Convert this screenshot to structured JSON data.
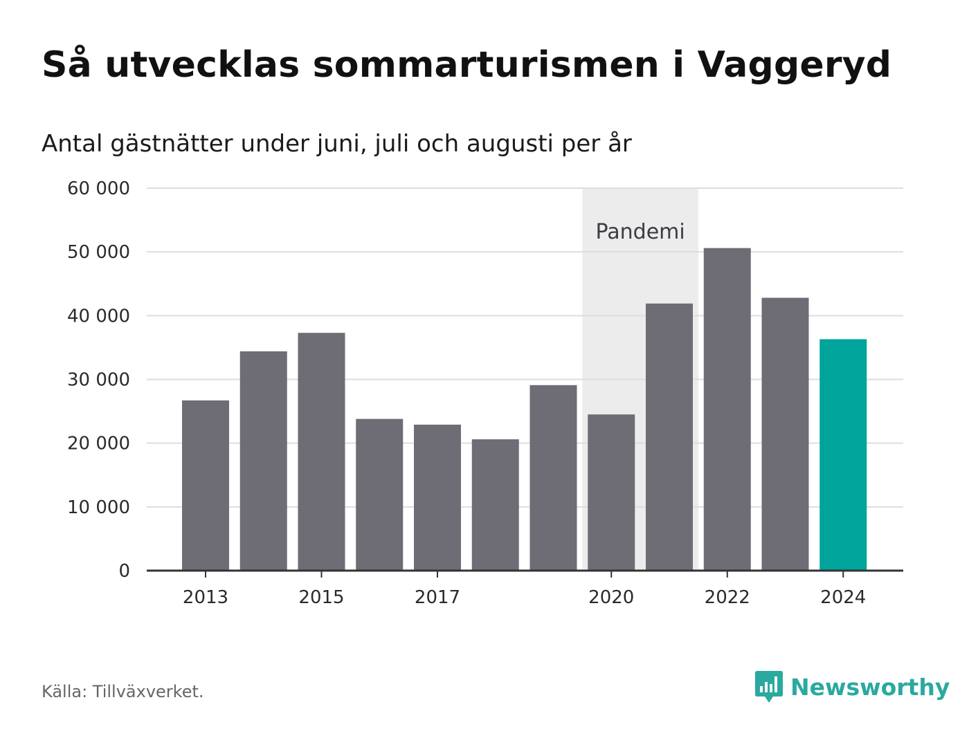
{
  "header": {
    "title": "Så utvecklas sommarturismen i Vaggeryd",
    "subtitle": "Antal gästnätter under juni, juli och augusti per år"
  },
  "footer": {
    "source": "Källa: Tillväxverket.",
    "brand": "Newsworthy",
    "brand_color": "#2aa9a0"
  },
  "colors": {
    "bar": "#6e6d75",
    "highlight": "#00a49a",
    "shade": "#ececec",
    "grid": "#dddddd",
    "axis": "#333333"
  },
  "chart_data": {
    "type": "bar",
    "categories": [
      "2013",
      "2014",
      "2015",
      "2016",
      "2017",
      "2018",
      "2019",
      "2020",
      "2021",
      "2022",
      "2023",
      "2024"
    ],
    "values": [
      26700,
      34400,
      37300,
      23800,
      22900,
      20600,
      29100,
      24500,
      41900,
      50600,
      42800,
      36300
    ],
    "highlight_category": "2024",
    "ylim": [
      0,
      60000
    ],
    "yticks": [
      0,
      10000,
      20000,
      30000,
      40000,
      50000,
      60000
    ],
    "ytick_labels": [
      "0",
      "10 000",
      "20 000",
      "30 000",
      "40 000",
      "50 000",
      "60 000"
    ],
    "xtick_labels": [
      "2013",
      "2015",
      "2017",
      "2020",
      "2022",
      "2024"
    ],
    "grid": "horizontal",
    "annotation": {
      "label": "Pandemi",
      "from": "2019.5",
      "to": "2021.5"
    }
  }
}
